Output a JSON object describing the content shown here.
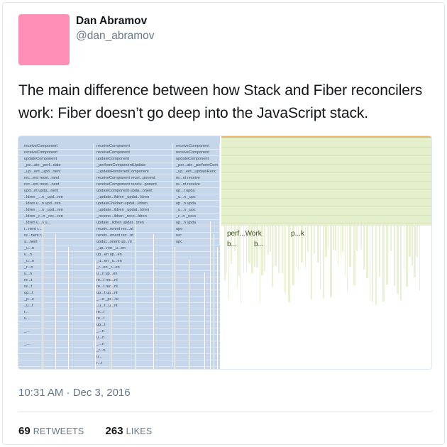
{
  "tweet": {
    "author_name": "Dan Abramov",
    "author_handle": "@dan_abramov",
    "avatar_color": "#fd8fb7",
    "text": "The main difference between how Stack and Fiber reconcilers work: Fiber doesn’t go deep into the JavaScript stack.",
    "timestamp": "10:31 AM · Dec 3, 2016",
    "retweets_count": "69",
    "retweets_label": "Retweets",
    "likes_count": "263",
    "likes_label": "Likes"
  },
  "media": {
    "stack_rows": [
      [
        "receiveComponent",
        "receiveComponent",
        "receiveComponent"
      ],
      [
        "receiveComponent",
        "receiveComponent",
        "receiveComponent"
      ],
      [
        "updateComponent",
        "updateComponent",
        "updateComponent"
      ],
      [
        "_pe...ate _perf...date",
        "_performComponentUpdate",
        "_per...ate _performCom"
      ],
      [
        "_up...ent _upd...nent",
        "_updateRenderedComponent",
        "_up...ent _updateRenc"
      ],
      [
        "rec...ent recei...nent",
        "receiveComponent recei...ponent",
        "re...nt receive"
      ],
      [
        "rec...ent recei...nent",
        "receiveComponent receiv...ponent",
        "re...nt receive"
      ],
      [
        "upd...nt upda...nent",
        "updateComponent upda...onent",
        "up...t upda"
      ],
      [
        "..ldren _...n _upd...ren",
        "_update...ildren _updat...ldren",
        "_u...n _upc"
      ],
      [
        "..ldren u...n upd...ren",
        "updateChildren updat...ildren",
        "up...n upda"
      ],
      [
        "..ldren _...n _upd...ren",
        "_update...ildren _updat...ldren",
        "_u...n _upc"
      ],
      [
        "..ldren _r...n _rec...ren",
        "_reconc...ildren _reco...ldren",
        "_r...n _reco"
      ],
      [
        "..ldren u...n u...",
        "update...ildren updat...dren",
        "up...n upda"
      ],
      [
        "i...nent r...",
        "receiv...onent rec...nt",
        "upo"
      ],
      [
        "re...nent r...",
        "receiv...onent rec...nt",
        "rec"
      ],
      [
        "a...nent",
        "updat...onent up...nt",
        "upc"
      ],
      [
        "_u...n",
        "_up...ren _u...en",
        ""
      ],
      [
        "u...n",
        "up...en up...en",
        ""
      ],
      [
        "_u...n",
        "_u...en _u...en",
        ""
      ],
      [
        "_r...n",
        "_r...en _r...en",
        ""
      ],
      [
        "u...n",
        "u...n up...en",
        ""
      ],
      [
        "re...t",
        "re...t rec...nt",
        ""
      ],
      [
        "re...t",
        "re...t rec...nt",
        ""
      ],
      [
        "up...t",
        "up...t up...nt",
        ""
      ],
      [
        "_p...e",
        "_...e _pe...te",
        ""
      ],
      [
        "_u...t",
        "_u...t _u...nt",
        ""
      ],
      [
        "r...",
        "re...t",
        ""
      ],
      [
        "u...",
        "re...t",
        ""
      ],
      [
        "",
        "up...t",
        ""
      ],
      [
        "_...",
        "_...n",
        ""
      ],
      [
        "",
        "u...n",
        ""
      ],
      [
        "_...",
        "_...n",
        ""
      ],
      [
        "",
        "_r...n",
        ""
      ],
      [
        "",
        "u...",
        ""
      ],
      [
        "",
        "r...t",
        ""
      ]
    ],
    "fiber_labels": {
      "row1_a": "perf...Work",
      "row1_b": "p...k",
      "row2_a": "b...",
      "row2_b": "b..."
    },
    "colors": {
      "stack": "#c5d6ea",
      "fiber": "#e4efcc",
      "fiber_border": "#e7b86c"
    }
  }
}
